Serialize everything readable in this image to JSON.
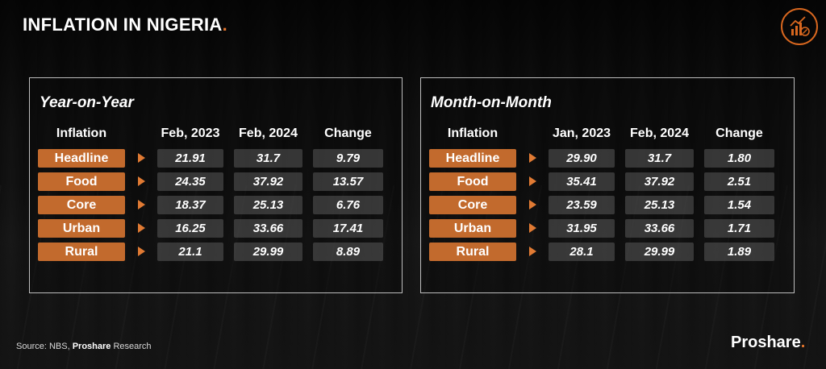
{
  "page": {
    "title": "INFLATION IN NIGERIA",
    "title_dot": ".",
    "source_prefix": "Source: NBS,",
    "source_brand": "Proshare",
    "source_suffix": "Research",
    "brand": "Proshare",
    "brand_dot": ".",
    "logo_icon": "chart-percent-icon",
    "accent_color": "#e2742d"
  },
  "chart_data": [
    {
      "type": "table",
      "title": "Year-on-Year",
      "columns": [
        "Inflation",
        "Feb, 2023",
        "Feb, 2024",
        "Change"
      ],
      "rows": [
        {
          "label": "Headline",
          "values": [
            "21.91",
            "31.7",
            "9.79"
          ]
        },
        {
          "label": "Food",
          "values": [
            "24.35",
            "37.92",
            "13.57"
          ]
        },
        {
          "label": "Core",
          "values": [
            "18.37",
            "25.13",
            "6.76"
          ]
        },
        {
          "label": "Urban",
          "values": [
            "16.25",
            "33.66",
            "17.41"
          ]
        },
        {
          "label": "Rural",
          "values": [
            "21.1",
            "29.99",
            "8.89"
          ]
        }
      ]
    },
    {
      "type": "table",
      "title": "Month-on-Month",
      "columns": [
        "Inflation",
        "Jan, 2023",
        "Feb, 2024",
        "Change"
      ],
      "rows": [
        {
          "label": "Headline",
          "values": [
            "29.90",
            "31.7",
            "1.80"
          ]
        },
        {
          "label": "Food",
          "values": [
            "35.41",
            "37.92",
            "2.51"
          ]
        },
        {
          "label": "Core",
          "values": [
            "23.59",
            "25.13",
            "1.54"
          ]
        },
        {
          "label": "Urban",
          "values": [
            "31.95",
            "33.66",
            "1.71"
          ]
        },
        {
          "label": "Rural",
          "values": [
            "28.1",
            "29.99",
            "1.89"
          ]
        }
      ]
    }
  ]
}
